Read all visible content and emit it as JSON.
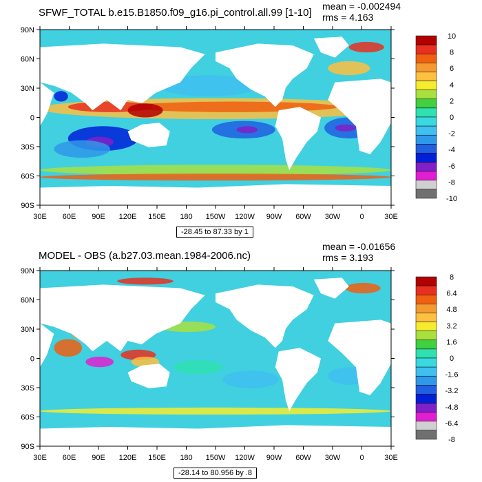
{
  "panels": [
    {
      "title": "SFWF_TOTAL b.e15.B1850.f09_g16.pi_control.all.99 [1-10]",
      "mean": "mean = -0.002494",
      "rms": "rms = 4.163",
      "note": "-28.45 to 87.33 by 1",
      "colorbar_labels": [
        "10",
        "8",
        "6",
        "4",
        "2",
        "0",
        "-2",
        "-4",
        "-6",
        "-8",
        "-10"
      ]
    },
    {
      "title": "MODEL - OBS (a.b27.03.mean.1984-2006.nc)",
      "mean": "mean = -0.01656",
      "rms": "rms = 3.193",
      "note": "-28.14 to 80.956 by .8",
      "colorbar_labels": [
        "8",
        "6.4",
        "4.8",
        "3.2",
        "1.6",
        "0",
        "-1.6",
        "-3.2",
        "-4.8",
        "-6.4",
        "-8"
      ]
    }
  ],
  "lat_labels": [
    "90N",
    "60N",
    "30N",
    "0",
    "30S",
    "60S",
    "90S"
  ],
  "lon_labels": [
    "30E",
    "60E",
    "90E",
    "120E",
    "150E",
    "180",
    "150W",
    "120W",
    "90W",
    "60W",
    "30W",
    "0",
    "30E"
  ],
  "colorbar_colors": [
    "#b30000",
    "#e83020",
    "#f06010",
    "#f59a30",
    "#fdc040",
    "#f5ec30",
    "#a8e040",
    "#40d040",
    "#30e0b0",
    "#3ad8e0",
    "#40c0ee",
    "#3098e8",
    "#2060e0",
    "#0020d8",
    "#8020c8",
    "#e020d0",
    "#d0d0d0",
    "#707070"
  ],
  "colors": {
    "land": "#ffffff",
    "ocean_base": "#40d0e0",
    "frame": "#000000"
  }
}
